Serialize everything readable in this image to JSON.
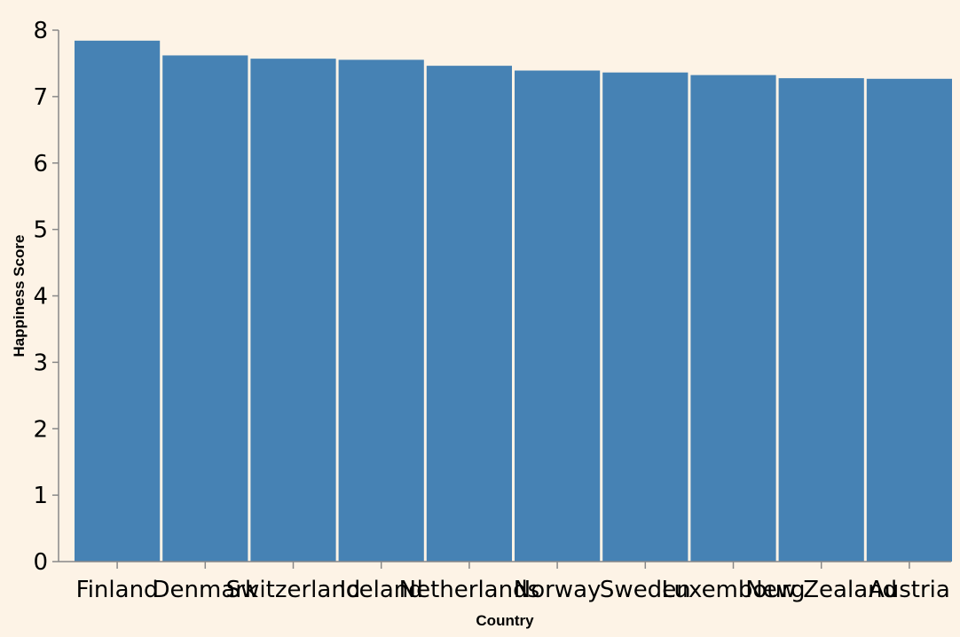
{
  "chart_data": {
    "type": "bar",
    "categories": [
      "Finland",
      "Denmark",
      "Switzerland",
      "Iceland",
      "Netherlands",
      "Norway",
      "Sweden",
      "Luxembourg",
      "New Zealand",
      "Austria"
    ],
    "values": [
      7.842,
      7.62,
      7.571,
      7.554,
      7.464,
      7.392,
      7.363,
      7.324,
      7.277,
      7.268
    ],
    "xlabel": "Country",
    "ylabel": "Happiness Score",
    "ylim": [
      0,
      8
    ],
    "yticks": [
      "0",
      "1",
      "2",
      "3",
      "4",
      "5",
      "6",
      "7",
      "8"
    ],
    "grid": false,
    "legend": "none",
    "bar_color": "#4682b4",
    "background": "#fdf3e6",
    "axis_color": "#888888"
  }
}
